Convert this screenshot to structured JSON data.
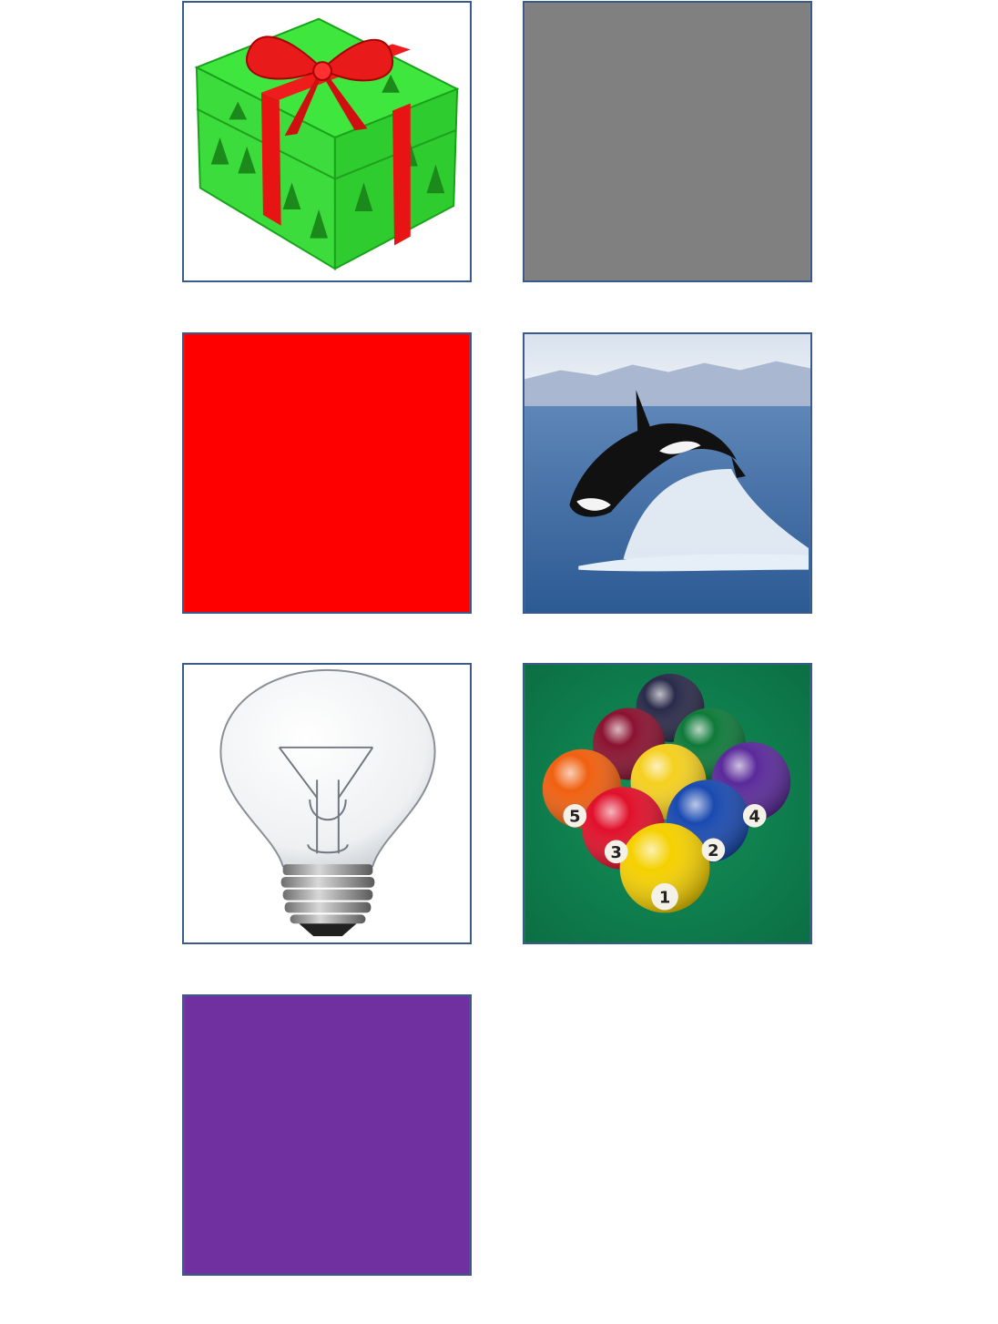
{
  "tiles": [
    {
      "kind": "image",
      "icon": "gift-box-icon",
      "color": "#ffffff"
    },
    {
      "kind": "solid",
      "color": "#808080"
    },
    {
      "kind": "solid",
      "color": "#ff0000"
    },
    {
      "kind": "image",
      "icon": "orca-icon",
      "color": "#3e6fa8"
    },
    {
      "kind": "image",
      "icon": "light-bulb-icon",
      "color": "#ffffff"
    },
    {
      "kind": "image",
      "icon": "billiard-balls-icon",
      "color": "#0f7a4a"
    },
    {
      "kind": "solid",
      "color": "#7030a0"
    }
  ],
  "billiard": {
    "ball_numbers": [
      "5",
      "3",
      "1",
      "2",
      "4"
    ]
  }
}
